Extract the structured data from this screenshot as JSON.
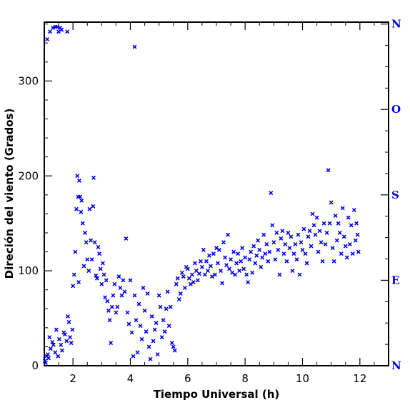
{
  "chart_data": {
    "type": "scatter",
    "title": "",
    "xlabel": "Tiempo Universal (h)",
    "ylabel": "Direción del viento (Grados)",
    "xlim": [
      1,
      13
    ],
    "ylim": [
      0,
      362
    ],
    "x_ticks": [
      "2",
      "4",
      "6",
      "8",
      "10",
      "12"
    ],
    "y_ticks": [
      "0",
      "100",
      "200",
      "300"
    ],
    "right_axis_labels": [
      {
        "label": "N",
        "value": 0
      },
      {
        "label": "E",
        "value": 90
      },
      {
        "label": "S",
        "value": 180
      },
      {
        "label": "O",
        "value": 270
      },
      {
        "label": "N",
        "value": 360
      }
    ],
    "marker": "x",
    "colors": {
      "points": "#0000ee",
      "right_labels": "#0000ee",
      "axes": "#000000"
    },
    "grid": false,
    "points": [
      [
        1.02,
        5
      ],
      [
        1.05,
        3
      ],
      [
        1.08,
        10
      ],
      [
        1.12,
        12
      ],
      [
        1.15,
        8
      ],
      [
        1.18,
        30
      ],
      [
        1.22,
        18
      ],
      [
        1.28,
        25
      ],
      [
        1.32,
        22
      ],
      [
        1.38,
        14
      ],
      [
        1.42,
        38
      ],
      [
        1.48,
        10
      ],
      [
        1.52,
        28
      ],
      [
        1.58,
        22
      ],
      [
        1.62,
        16
      ],
      [
        1.68,
        35
      ],
      [
        1.72,
        33
      ],
      [
        1.78,
        26
      ],
      [
        1.82,
        52
      ],
      [
        1.86,
        46
      ],
      [
        1.9,
        30
      ],
      [
        1.94,
        24
      ],
      [
        1.98,
        38
      ],
      [
        2.0,
        84
      ],
      [
        2.04,
        96
      ],
      [
        2.08,
        120
      ],
      [
        2.12,
        165
      ],
      [
        2.15,
        200
      ],
      [
        2.18,
        178
      ],
      [
        2.2,
        88
      ],
      [
        2.22,
        195
      ],
      [
        2.25,
        178
      ],
      [
        2.28,
        162
      ],
      [
        2.3,
        174
      ],
      [
        2.34,
        150
      ],
      [
        2.38,
        105
      ],
      [
        2.42,
        140
      ],
      [
        2.46,
        130
      ],
      [
        2.5,
        112
      ],
      [
        2.55,
        100
      ],
      [
        2.58,
        165
      ],
      [
        2.62,
        132
      ],
      [
        2.66,
        112
      ],
      [
        2.7,
        168
      ],
      [
        2.72,
        198
      ],
      [
        2.76,
        130
      ],
      [
        2.8,
        95
      ],
      [
        2.84,
        92
      ],
      [
        2.88,
        125
      ],
      [
        2.92,
        118
      ],
      [
        2.96,
        102
      ],
      [
        3.0,
        86
      ],
      [
        3.04,
        108
      ],
      [
        3.08,
        96
      ],
      [
        3.12,
        72
      ],
      [
        3.16,
        90
      ],
      [
        3.2,
        68
      ],
      [
        3.24,
        58
      ],
      [
        3.28,
        48
      ],
      [
        3.32,
        24
      ],
      [
        3.36,
        62
      ],
      [
        3.4,
        74
      ],
      [
        3.45,
        86
      ],
      [
        3.5,
        56
      ],
      [
        3.55,
        62
      ],
      [
        3.6,
        94
      ],
      [
        3.65,
        82
      ],
      [
        3.7,
        74
      ],
      [
        3.75,
        90
      ],
      [
        3.8,
        78
      ],
      [
        3.85,
        134
      ],
      [
        3.9,
        56
      ],
      [
        3.95,
        44
      ],
      [
        4.0,
        90
      ],
      [
        4.05,
        35
      ],
      [
        4.1,
        10
      ],
      [
        4.15,
        74
      ],
      [
        4.2,
        48
      ],
      [
        4.25,
        14
      ],
      [
        4.3,
        65
      ],
      [
        4.35,
        42
      ],
      [
        4.4,
        28
      ],
      [
        4.45,
        82
      ],
      [
        4.5,
        58
      ],
      [
        4.55,
        36
      ],
      [
        4.6,
        76
      ],
      [
        4.65,
        20
      ],
      [
        4.7,
        7
      ],
      [
        4.75,
        52
      ],
      [
        4.8,
        26
      ],
      [
        4.85,
        38
      ],
      [
        4.9,
        45
      ],
      [
        4.95,
        12
      ],
      [
        5.0,
        74
      ],
      [
        5.05,
        62
      ],
      [
        5.1,
        30
      ],
      [
        5.15,
        48
      ],
      [
        5.2,
        36
      ],
      [
        5.25,
        60
      ],
      [
        5.3,
        78
      ],
      [
        5.35,
        42
      ],
      [
        5.4,
        62
      ],
      [
        5.45,
        24
      ],
      [
        5.5,
        20
      ],
      [
        5.55,
        16
      ],
      [
        5.6,
        86
      ],
      [
        5.65,
        92
      ],
      [
        5.7,
        70
      ],
      [
        5.75,
        76
      ],
      [
        5.8,
        98
      ],
      [
        5.85,
        94
      ],
      [
        5.9,
        82
      ],
      [
        5.95,
        104
      ],
      [
        6.0,
        102
      ],
      [
        6.05,
        92
      ],
      [
        6.1,
        86
      ],
      [
        6.15,
        96
      ],
      [
        6.2,
        88
      ],
      [
        6.25,
        108
      ],
      [
        6.3,
        100
      ],
      [
        6.35,
        90
      ],
      [
        6.4,
        97
      ],
      [
        6.45,
        110
      ],
      [
        6.5,
        104
      ],
      [
        6.55,
        122
      ],
      [
        6.6,
        96
      ],
      [
        6.65,
        110
      ],
      [
        6.7,
        100
      ],
      [
        6.75,
        116
      ],
      [
        6.8,
        105
      ],
      [
        6.85,
        94
      ],
      [
        6.9,
        118
      ],
      [
        6.95,
        96
      ],
      [
        7.0,
        124
      ],
      [
        7.05,
        108
      ],
      [
        7.1,
        122
      ],
      [
        7.15,
        100
      ],
      [
        7.2,
        87
      ],
      [
        7.25,
        130
      ],
      [
        7.3,
        114
      ],
      [
        7.35,
        106
      ],
      [
        7.4,
        138
      ],
      [
        7.45,
        102
      ],
      [
        7.5,
        112
      ],
      [
        7.55,
        98
      ],
      [
        7.6,
        120
      ],
      [
        7.65,
        96
      ],
      [
        7.7,
        108
      ],
      [
        7.75,
        118
      ],
      [
        7.8,
        100
      ],
      [
        7.85,
        110
      ],
      [
        7.9,
        124
      ],
      [
        7.95,
        102
      ],
      [
        8.0,
        114
      ],
      [
        8.05,
        96
      ],
      [
        8.1,
        88
      ],
      [
        8.15,
        112
      ],
      [
        8.2,
        120
      ],
      [
        8.25,
        98
      ],
      [
        8.3,
        126
      ],
      [
        8.35,
        108
      ],
      [
        8.4,
        116
      ],
      [
        8.45,
        132
      ],
      [
        8.5,
        122
      ],
      [
        8.55,
        104
      ],
      [
        8.6,
        114
      ],
      [
        8.65,
        138
      ],
      [
        8.7,
        118
      ],
      [
        8.75,
        128
      ],
      [
        8.8,
        110
      ],
      [
        8.85,
        120
      ],
      [
        8.9,
        182
      ],
      [
        8.95,
        148
      ],
      [
        9.0,
        130
      ],
      [
        9.05,
        112
      ],
      [
        9.1,
        140
      ],
      [
        9.15,
        122
      ],
      [
        9.2,
        96
      ],
      [
        9.25,
        134
      ],
      [
        9.3,
        142
      ],
      [
        9.35,
        118
      ],
      [
        9.4,
        128
      ],
      [
        9.45,
        110
      ],
      [
        9.5,
        140
      ],
      [
        9.55,
        124
      ],
      [
        9.6,
        136
      ],
      [
        9.65,
        100
      ],
      [
        9.7,
        118
      ],
      [
        9.75,
        128
      ],
      [
        9.8,
        112
      ],
      [
        9.85,
        138
      ],
      [
        9.9,
        96
      ],
      [
        9.95,
        130
      ],
      [
        10.0,
        122
      ],
      [
        10.05,
        144
      ],
      [
        10.1,
        118
      ],
      [
        10.15,
        108
      ],
      [
        10.2,
        136
      ],
      [
        10.25,
        142
      ],
      [
        10.3,
        126
      ],
      [
        10.35,
        160
      ],
      [
        10.4,
        148
      ],
      [
        10.45,
        138
      ],
      [
        10.5,
        156
      ],
      [
        10.55,
        120
      ],
      [
        10.6,
        142
      ],
      [
        10.65,
        130
      ],
      [
        10.7,
        110
      ],
      [
        10.75,
        150
      ],
      [
        10.8,
        128
      ],
      [
        10.85,
        140
      ],
      [
        10.9,
        206
      ],
      [
        10.95,
        150
      ],
      [
        11.0,
        172
      ],
      [
        11.05,
        124
      ],
      [
        11.1,
        110
      ],
      [
        11.15,
        158
      ],
      [
        11.2,
        132
      ],
      [
        11.25,
        150
      ],
      [
        11.3,
        140
      ],
      [
        11.35,
        118
      ],
      [
        11.4,
        166
      ],
      [
        11.45,
        136
      ],
      [
        11.5,
        126
      ],
      [
        11.55,
        114
      ],
      [
        11.6,
        156
      ],
      [
        11.65,
        128
      ],
      [
        11.7,
        148
      ],
      [
        11.75,
        118
      ],
      [
        11.8,
        164
      ],
      [
        11.85,
        132
      ],
      [
        11.88,
        150
      ],
      [
        11.92,
        138
      ],
      [
        11.95,
        120
      ],
      [
        1.1,
        344
      ],
      [
        1.2,
        352
      ],
      [
        1.3,
        356
      ],
      [
        1.38,
        357
      ],
      [
        1.45,
        357
      ],
      [
        1.5,
        352
      ],
      [
        1.55,
        356
      ],
      [
        1.6,
        354
      ],
      [
        1.8,
        352
      ],
      [
        4.15,
        336
      ]
    ]
  }
}
